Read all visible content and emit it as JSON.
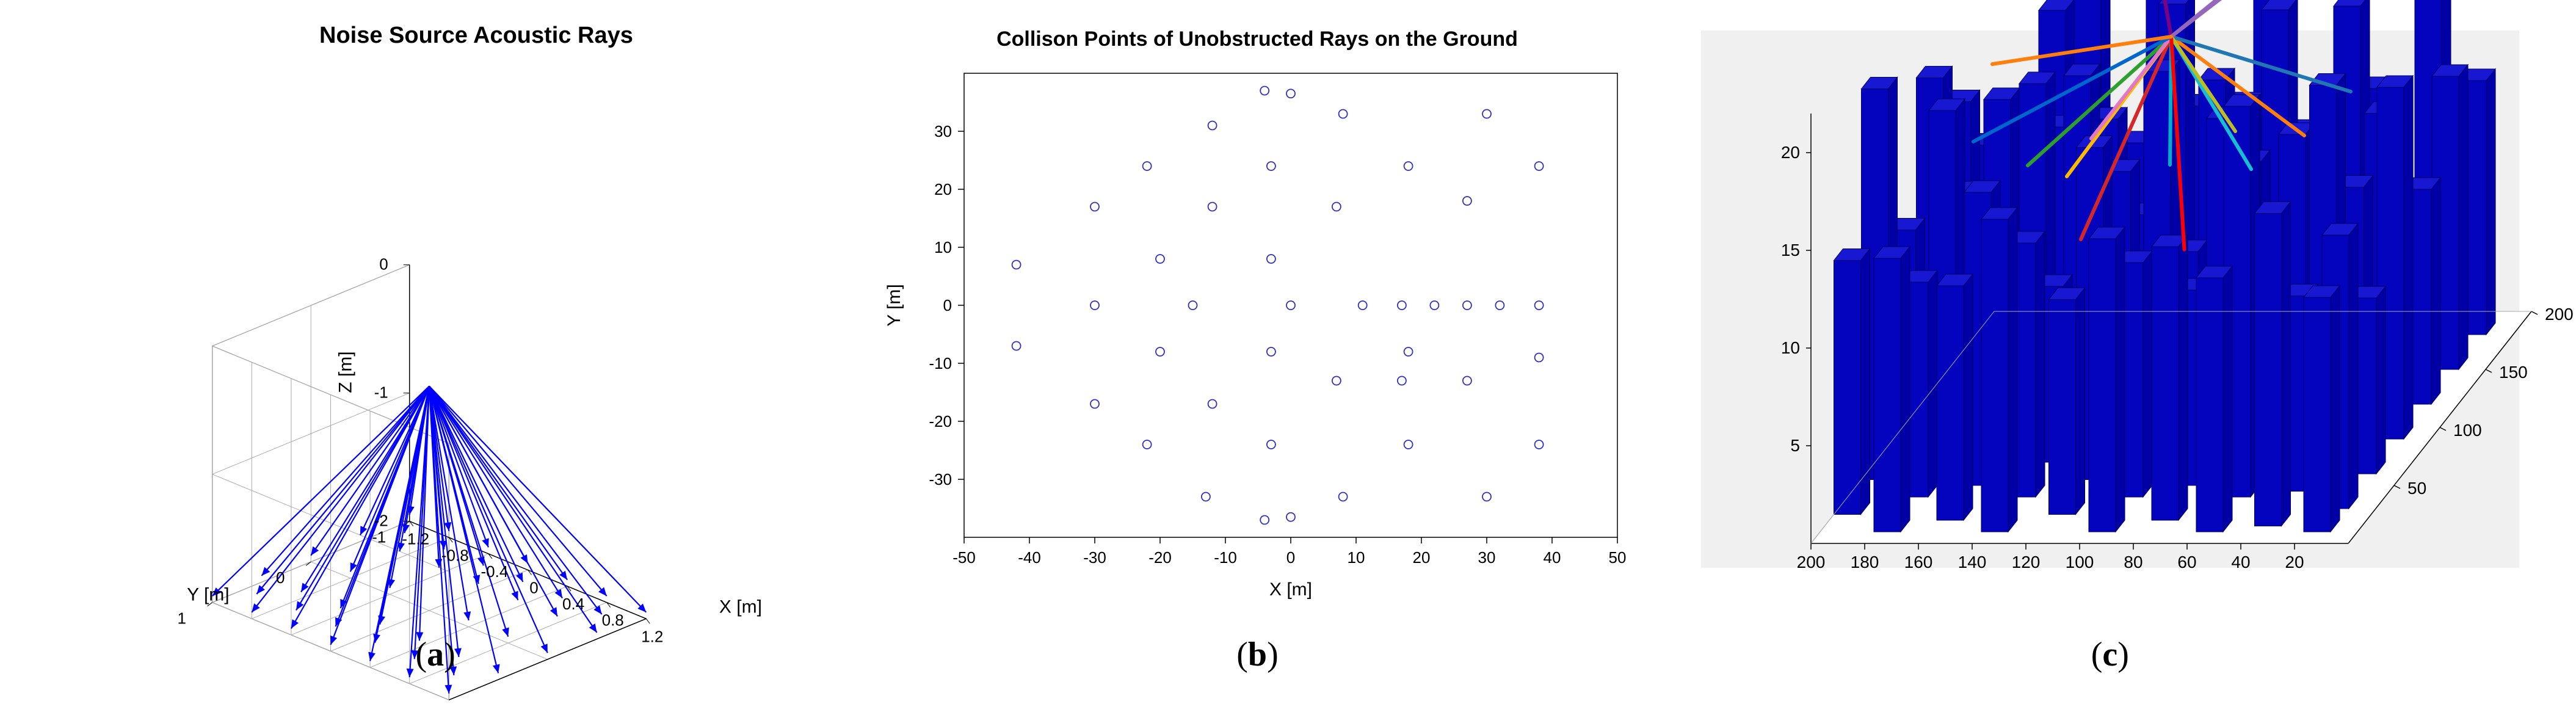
{
  "panel_a": {
    "type": "3d-quiver",
    "title": "Noise Source Acoustic Rays",
    "title_fontsize": 38,
    "title_fontweight": "bold",
    "xlabel": "X [m]",
    "ylabel": "Y [m]",
    "zlabel": "Z [m]",
    "label_fontsize": 30,
    "x_ticks": [
      -1.2,
      -0.8,
      -0.4,
      0,
      0.4,
      0.8,
      1.2
    ],
    "y_ticks": [
      -1,
      0,
      1
    ],
    "z_ticks": [
      -2,
      -1,
      0
    ],
    "tick_fontsize": 26,
    "arrow_color": "#0000ff",
    "grid_color": "#aaaaaa",
    "axis_box_color": "#000000",
    "background_color": "#ffffff",
    "source_point_3d": [
      0,
      0,
      -0.25
    ],
    "arrow_tips_3d": [
      [
        -1.2,
        -1,
        -1.95
      ],
      [
        -0.8,
        -1,
        -1.95
      ],
      [
        -0.4,
        -1,
        -1.95
      ],
      [
        0,
        -1,
        -1.95
      ],
      [
        0.4,
        -1,
        -1.95
      ],
      [
        0.8,
        -1,
        -1.95
      ],
      [
        1.2,
        -1,
        -1.95
      ],
      [
        -1.2,
        -0.5,
        -1.95
      ],
      [
        -0.8,
        -0.5,
        -1.95
      ],
      [
        -0.4,
        -0.5,
        -1.95
      ],
      [
        0,
        -0.5,
        -1.95
      ],
      [
        0.4,
        -0.5,
        -1.95
      ],
      [
        0.8,
        -0.5,
        -1.95
      ],
      [
        1.2,
        -0.5,
        -1.95
      ],
      [
        -1.2,
        0,
        -1.95
      ],
      [
        -0.8,
        0,
        -1.95
      ],
      [
        -0.4,
        0,
        -1.95
      ],
      [
        0.4,
        0,
        -1.95
      ],
      [
        0.8,
        0,
        -1.95
      ],
      [
        1.2,
        0,
        -1.95
      ],
      [
        -1.2,
        0.5,
        -1.95
      ],
      [
        -0.8,
        0.5,
        -1.95
      ],
      [
        -0.4,
        0.5,
        -1.95
      ],
      [
        0,
        0.5,
        -1.95
      ],
      [
        0.4,
        0.5,
        -1.95
      ],
      [
        0.8,
        0.5,
        -1.95
      ],
      [
        1.2,
        0.5,
        -1.95
      ],
      [
        -1.2,
        1,
        -1.95
      ],
      [
        -0.8,
        1,
        -1.95
      ],
      [
        -0.4,
        1,
        -1.95
      ],
      [
        0,
        1,
        -1.95
      ],
      [
        0.4,
        1,
        -1.95
      ],
      [
        0.8,
        1,
        -1.95
      ],
      [
        1.2,
        1,
        -1.95
      ],
      [
        -1.0,
        -0.75,
        -1.95
      ],
      [
        -0.6,
        -0.75,
        -1.95
      ],
      [
        -0.2,
        -0.75,
        -1.95
      ],
      [
        0.2,
        -0.75,
        -1.95
      ],
      [
        0.6,
        -0.75,
        -1.95
      ],
      [
        1.0,
        -0.75,
        -1.95
      ],
      [
        -1.0,
        0.75,
        -1.95
      ],
      [
        -0.6,
        0.75,
        -1.95
      ],
      [
        -0.2,
        0.75,
        -1.95
      ],
      [
        0.2,
        0.75,
        -1.95
      ],
      [
        0.6,
        0.75,
        -1.95
      ],
      [
        1.0,
        0.75,
        -1.95
      ]
    ],
    "sublabel": "a"
  },
  "panel_b": {
    "type": "scatter",
    "title": "Collison Points of Unobstructed Rays on the Ground",
    "title_fontsize": 34,
    "title_fontweight": "bold",
    "xlabel": "X [m]",
    "ylabel": "Y [m]",
    "label_fontsize": 30,
    "xlim": [
      -50,
      50
    ],
    "ylim": [
      -40,
      40
    ],
    "x_ticks": [
      -50,
      -40,
      -30,
      -20,
      -10,
      0,
      10,
      20,
      30,
      40,
      50
    ],
    "y_ticks": [
      -30,
      -20,
      -10,
      0,
      10,
      20,
      30
    ],
    "tick_fontsize": 26,
    "marker_style": "open-circle",
    "marker_color": "#3030c0",
    "marker_radius": 7,
    "background_color": "#ffffff",
    "axis_color": "#000000",
    "points": [
      [
        0,
        36.5
      ],
      [
        -4,
        37
      ],
      [
        -12,
        31
      ],
      [
        8,
        33
      ],
      [
        30,
        33
      ],
      [
        -22,
        24
      ],
      [
        -3,
        24
      ],
      [
        18,
        24
      ],
      [
        38,
        24
      ],
      [
        -30,
        17
      ],
      [
        -12,
        17
      ],
      [
        7,
        17
      ],
      [
        27,
        18
      ],
      [
        -42,
        7
      ],
      [
        -20,
        8
      ],
      [
        -3,
        8
      ],
      [
        17,
        0
      ],
      [
        22,
        0
      ],
      [
        27,
        0
      ],
      [
        32,
        0
      ],
      [
        38,
        0
      ],
      [
        -30,
        0
      ],
      [
        -15,
        0
      ],
      [
        0,
        0
      ],
      [
        11,
        0
      ],
      [
        -42,
        -7
      ],
      [
        -20,
        -8
      ],
      [
        -3,
        -8
      ],
      [
        18,
        -8
      ],
      [
        38,
        -9
      ],
      [
        7,
        -13
      ],
      [
        27,
        -13
      ],
      [
        17,
        -13
      ],
      [
        -30,
        -17
      ],
      [
        -12,
        -17
      ],
      [
        -3,
        -24
      ],
      [
        18,
        -24
      ],
      [
        38,
        -24
      ],
      [
        -22,
        -24
      ],
      [
        -13,
        -33
      ],
      [
        8,
        -33
      ],
      [
        30,
        -33
      ],
      [
        -4,
        -37
      ],
      [
        0,
        -36.5
      ]
    ],
    "sublabel": "b"
  },
  "panel_c": {
    "type": "3d-cityscape",
    "background_color": "#f0f0f0",
    "ground_color": "#ffffff",
    "building_color": "#0404bf",
    "building_edge_color": "#000060",
    "axis_color": "#000000",
    "grid_color": "#aaaaaa",
    "tick_fontsize": 28,
    "x_range": [
      0,
      200
    ],
    "y_range": [
      0,
      200
    ],
    "z_range": [
      0,
      22
    ],
    "x_ticks": [
      200,
      180,
      160,
      140,
      120,
      100,
      80,
      60,
      40,
      20
    ],
    "y_ticks": [
      50,
      100,
      150,
      200
    ],
    "z_ticks": [
      5,
      10,
      15,
      20
    ],
    "ray_source_3d": [
      100,
      100,
      20
    ],
    "ray_colors": [
      "#ff7f0e",
      "#1f77b4",
      "#d62728",
      "#9467bd",
      "#2ca02c",
      "#17becf",
      "#e377c2",
      "#bcbd22",
      "#ffbb00",
      "#00aec7",
      "#7f007f",
      "#ff0000",
      "#0066cc"
    ],
    "buildings": [
      [
        10,
        10,
        10,
        10,
        12
      ],
      [
        10,
        30,
        10,
        10,
        14
      ],
      [
        10,
        60,
        10,
        10,
        9
      ],
      [
        10,
        90,
        10,
        10,
        18
      ],
      [
        10,
        120,
        10,
        10,
        11
      ],
      [
        10,
        150,
        10,
        10,
        15
      ],
      [
        10,
        180,
        10,
        10,
        13
      ],
      [
        30,
        15,
        10,
        10,
        16
      ],
      [
        30,
        45,
        10,
        10,
        10
      ],
      [
        30,
        75,
        10,
        10,
        19
      ],
      [
        30,
        105,
        10,
        10,
        12
      ],
      [
        30,
        135,
        10,
        10,
        14
      ],
      [
        30,
        165,
        10,
        10,
        8
      ],
      [
        30,
        190,
        10,
        10,
        17
      ],
      [
        50,
        10,
        10,
        10,
        13
      ],
      [
        50,
        40,
        10,
        10,
        20
      ],
      [
        50,
        70,
        10,
        10,
        11
      ],
      [
        50,
        100,
        10,
        10,
        15
      ],
      [
        50,
        130,
        10,
        10,
        9
      ],
      [
        50,
        160,
        10,
        10,
        18
      ],
      [
        50,
        190,
        10,
        10,
        12
      ],
      [
        70,
        20,
        10,
        10,
        14
      ],
      [
        70,
        50,
        10,
        10,
        10
      ],
      [
        70,
        80,
        10,
        10,
        17
      ],
      [
        70,
        110,
        10,
        10,
        13
      ],
      [
        70,
        140,
        10,
        10,
        19
      ],
      [
        70,
        170,
        10,
        10,
        11
      ],
      [
        90,
        10,
        10,
        10,
        15
      ],
      [
        90,
        40,
        10,
        10,
        12
      ],
      [
        90,
        70,
        10,
        10,
        20
      ],
      [
        90,
        100,
        10,
        10,
        9
      ],
      [
        90,
        130,
        10,
        10,
        16
      ],
      [
        90,
        160,
        10,
        10,
        13
      ],
      [
        90,
        190,
        10,
        10,
        18
      ],
      [
        110,
        25,
        10,
        10,
        11
      ],
      [
        110,
        55,
        10,
        10,
        17
      ],
      [
        110,
        85,
        10,
        10,
        14
      ],
      [
        110,
        115,
        10,
        10,
        10
      ],
      [
        110,
        145,
        10,
        10,
        19
      ],
      [
        110,
        175,
        10,
        10,
        12
      ],
      [
        130,
        10,
        10,
        10,
        16
      ],
      [
        130,
        40,
        10,
        10,
        13
      ],
      [
        130,
        70,
        10,
        10,
        9
      ],
      [
        130,
        100,
        10,
        10,
        18
      ],
      [
        130,
        130,
        10,
        10,
        14
      ],
      [
        130,
        160,
        10,
        10,
        11
      ],
      [
        130,
        190,
        10,
        10,
        20
      ],
      [
        150,
        20,
        10,
        10,
        12
      ],
      [
        150,
        50,
        10,
        10,
        15
      ],
      [
        150,
        80,
        10,
        10,
        10
      ],
      [
        150,
        110,
        10,
        10,
        17
      ],
      [
        150,
        140,
        10,
        10,
        13
      ],
      [
        150,
        170,
        10,
        10,
        19
      ],
      [
        170,
        10,
        10,
        10,
        14
      ],
      [
        170,
        40,
        10,
        10,
        11
      ],
      [
        170,
        70,
        10,
        10,
        18
      ],
      [
        170,
        100,
        10,
        10,
        12
      ],
      [
        170,
        130,
        10,
        10,
        15
      ],
      [
        170,
        160,
        10,
        10,
        9
      ],
      [
        170,
        190,
        10,
        10,
        16
      ],
      [
        190,
        25,
        10,
        10,
        13
      ],
      [
        190,
        55,
        10,
        10,
        20
      ],
      [
        190,
        85,
        10,
        10,
        11
      ],
      [
        190,
        115,
        10,
        10,
        17
      ],
      [
        190,
        145,
        10,
        10,
        14
      ],
      [
        190,
        175,
        10,
        10,
        10
      ]
    ],
    "rays_3d": [
      {
        "color": "#ff7f0e",
        "pts": [
          [
            100,
            100,
            20
          ],
          [
            30,
            40,
            18.5
          ]
        ]
      },
      {
        "color": "#1f77b4",
        "pts": [
          [
            100,
            100,
            20
          ],
          [
            40,
            120,
            16
          ]
        ]
      },
      {
        "color": "#d62728",
        "pts": [
          [
            100,
            100,
            20
          ],
          [
            120,
            60,
            12
          ]
        ]
      },
      {
        "color": "#9467bd",
        "pts": [
          [
            100,
            100,
            20
          ],
          [
            70,
            150,
            22
          ],
          [
            55,
            175,
            25
          ]
        ]
      },
      {
        "color": "#2ca02c",
        "pts": [
          [
            100,
            100,
            20
          ],
          [
            150,
            90,
            14
          ]
        ]
      },
      {
        "color": "#17becf",
        "pts": [
          [
            100,
            100,
            20
          ],
          [
            60,
            70,
            15
          ]
        ]
      },
      {
        "color": "#ffbb00",
        "pts": [
          [
            100,
            100,
            20
          ],
          [
            115,
            30,
            17
          ]
        ]
      },
      {
        "color": "#7f007f",
        "pts": [
          [
            100,
            100,
            20
          ],
          [
            130,
            160,
            24
          ],
          [
            145,
            190,
            27
          ]
        ]
      },
      {
        "color": "#00aec7",
        "pts": [
          [
            100,
            100,
            20
          ],
          [
            80,
            40,
            17
          ]
        ]
      },
      {
        "color": "#e377c2",
        "pts": [
          [
            100,
            100,
            20
          ],
          [
            140,
            130,
            13
          ]
        ]
      },
      {
        "color": "#bcbd22",
        "pts": [
          [
            100,
            100,
            20
          ],
          [
            100,
            170,
            11
          ]
        ]
      },
      {
        "color": "#ff0000",
        "pts": [
          [
            100,
            100,
            20
          ],
          [
            90,
            85,
            10
          ]
        ]
      },
      {
        "color": "#0066cc",
        "pts": [
          [
            100,
            100,
            20
          ],
          [
            160,
            60,
            17
          ]
        ]
      },
      {
        "color": "#9467bd",
        "pts": [
          [
            100,
            100,
            20
          ],
          [
            40,
            180,
            25
          ]
        ]
      },
      {
        "color": "#ff7f0e",
        "pts": [
          [
            100,
            100,
            20
          ],
          [
            170,
            110,
            18
          ]
        ]
      }
    ],
    "sublabel": "c"
  }
}
